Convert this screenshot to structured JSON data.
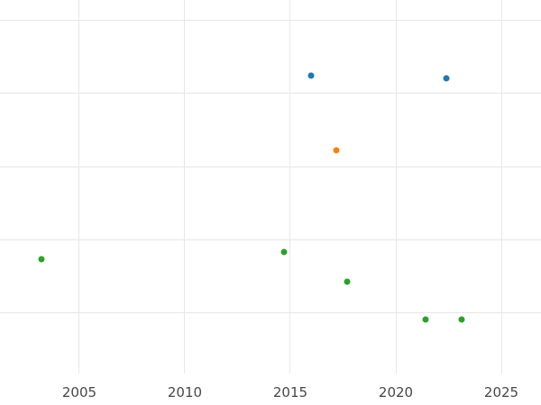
{
  "figure": {
    "background_color": "#ffffff",
    "grid_color": "#e7e7e7",
    "tick_label_color": "#474747"
  },
  "chart_data": {
    "type": "scatter",
    "title": "",
    "xlabel": "",
    "ylabel": "",
    "grid": true,
    "legend": "none",
    "x_ticks": [
      {
        "value": 2005,
        "label": "2005"
      },
      {
        "value": 2010,
        "label": "2010"
      },
      {
        "value": 2015,
        "label": "2015"
      },
      {
        "value": 2020,
        "label": "2020"
      },
      {
        "value": 2025,
        "label": "2025"
      }
    ],
    "xlim": [
      2001.24,
      2026.88
    ],
    "ylim": [
      0.17,
      5.28
    ],
    "y_gridline_values": [
      1,
      2,
      3,
      4,
      5
    ],
    "y_tick_labels_visible": false,
    "marker_diameter_px": 7,
    "series": [
      {
        "name": "series-blue",
        "color": "#1f77b4",
        "points": [
          {
            "x": 2016.0,
            "y": 4.25
          },
          {
            "x": 2022.4,
            "y": 4.21
          }
        ]
      },
      {
        "name": "series-orange",
        "color": "#ff7f0e",
        "points": [
          {
            "x": 2017.2,
            "y": 3.22
          }
        ]
      },
      {
        "name": "series-green",
        "color": "#2ca02c",
        "points": [
          {
            "x": 2003.2,
            "y": 1.73
          },
          {
            "x": 2014.7,
            "y": 1.83
          },
          {
            "x": 2017.7,
            "y": 1.43
          },
          {
            "x": 2021.4,
            "y": 0.91
          },
          {
            "x": 2023.1,
            "y": 0.91
          }
        ]
      }
    ]
  }
}
